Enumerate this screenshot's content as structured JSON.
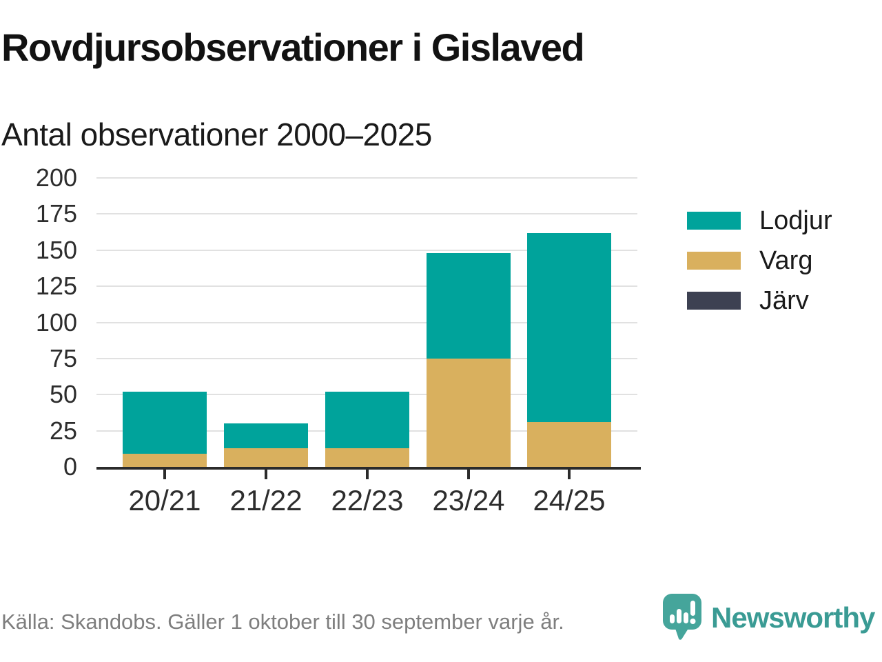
{
  "chart_data": {
    "type": "bar",
    "stacked": true,
    "title": "Rovdjursobservationer i Gislaved",
    "subtitle": "Antal observationer 2000–2025",
    "categories": [
      "20/21",
      "21/22",
      "22/23",
      "23/24",
      "24/25"
    ],
    "series": [
      {
        "name": "Lodjur",
        "color": "#00a39b",
        "values": [
          43,
          17,
          39,
          73,
          131
        ]
      },
      {
        "name": "Varg",
        "color": "#d9b05e",
        "values": [
          9,
          13,
          13,
          75,
          31
        ]
      },
      {
        "name": "Järv",
        "color": "#3d4152",
        "values": [
          0,
          0,
          0,
          0,
          0
        ]
      }
    ],
    "totals": [
      52,
      30,
      52,
      148,
      162
    ],
    "ylim": [
      0,
      200
    ],
    "ytick_step": 25,
    "grid": true,
    "legend_position": "right",
    "axis_color": "#2b2b2b",
    "gridline_color": "#e1e1e1"
  },
  "footer": {
    "source": "Källa: Skandobs. Gäller 1 oktober till 30 september varje år.",
    "brand": "Newsworthy",
    "brand_color": "#3a9b94",
    "logo_bubble_color": "#45a59b"
  }
}
